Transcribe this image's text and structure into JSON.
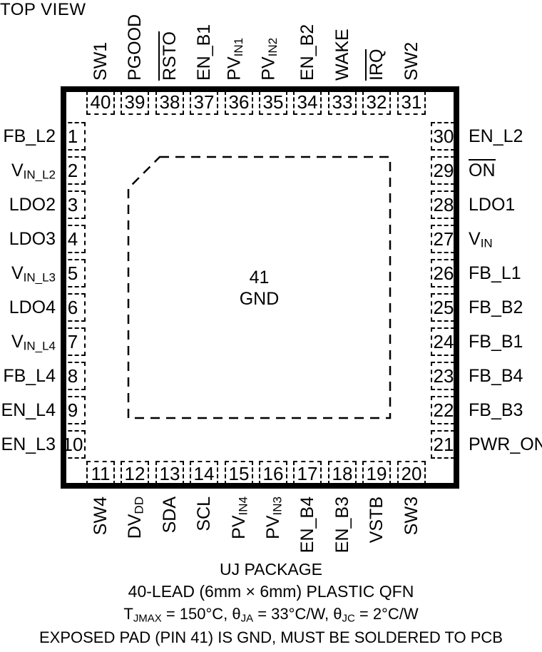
{
  "title": "TOP VIEW",
  "colors": {
    "ink": "#000000",
    "background": "#ffffff"
  },
  "package": {
    "type_note": "40-pin QFN pinout, dashed exposed pad with chamfered corner",
    "exposed_pad": {
      "number": "41",
      "name": "GND"
    }
  },
  "pins": {
    "top": [
      {
        "num": "40",
        "parts": [
          {
            "t": "SW1"
          }
        ],
        "over": false
      },
      {
        "num": "39",
        "parts": [
          {
            "t": "PGOOD"
          }
        ],
        "over": false
      },
      {
        "num": "38",
        "parts": [
          {
            "t": "RSTO"
          }
        ],
        "over": true
      },
      {
        "num": "37",
        "parts": [
          {
            "t": "EN_B1"
          }
        ],
        "over": false
      },
      {
        "num": "36",
        "parts": [
          {
            "t": "PV"
          },
          {
            "t": "IN1",
            "sub": true
          }
        ],
        "over": false
      },
      {
        "num": "35",
        "parts": [
          {
            "t": "PV"
          },
          {
            "t": "IN2",
            "sub": true
          }
        ],
        "over": false
      },
      {
        "num": "34",
        "parts": [
          {
            "t": "EN_B2"
          }
        ],
        "over": false
      },
      {
        "num": "33",
        "parts": [
          {
            "t": "WAKE"
          }
        ],
        "over": false
      },
      {
        "num": "32",
        "parts": [
          {
            "t": "IRQ"
          }
        ],
        "over": true
      },
      {
        "num": "31",
        "parts": [
          {
            "t": "SW2"
          }
        ],
        "over": false
      }
    ],
    "left": [
      {
        "num": "1",
        "parts": [
          {
            "t": "FB_L2"
          }
        ],
        "over": false
      },
      {
        "num": "2",
        "parts": [
          {
            "t": "V"
          },
          {
            "t": "IN_L2",
            "sub": true
          }
        ],
        "over": false
      },
      {
        "num": "3",
        "parts": [
          {
            "t": "LDO2"
          }
        ],
        "over": false
      },
      {
        "num": "4",
        "parts": [
          {
            "t": "LDO3"
          }
        ],
        "over": false
      },
      {
        "num": "5",
        "parts": [
          {
            "t": "V"
          },
          {
            "t": "IN_L3",
            "sub": true
          }
        ],
        "over": false
      },
      {
        "num": "6",
        "parts": [
          {
            "t": "LDO4"
          }
        ],
        "over": false
      },
      {
        "num": "7",
        "parts": [
          {
            "t": "V"
          },
          {
            "t": "IN_L4",
            "sub": true
          }
        ],
        "over": false
      },
      {
        "num": "8",
        "parts": [
          {
            "t": "FB_L4"
          }
        ],
        "over": false
      },
      {
        "num": "9",
        "parts": [
          {
            "t": "EN_L4"
          }
        ],
        "over": false
      },
      {
        "num": "10",
        "parts": [
          {
            "t": "EN_L3"
          }
        ],
        "over": false
      }
    ],
    "right": [
      {
        "num": "30",
        "parts": [
          {
            "t": "EN_L2"
          }
        ],
        "over": false
      },
      {
        "num": "29",
        "parts": [
          {
            "t": "ON"
          }
        ],
        "over": true
      },
      {
        "num": "28",
        "parts": [
          {
            "t": "LDO1"
          }
        ],
        "over": false
      },
      {
        "num": "27",
        "parts": [
          {
            "t": "V"
          },
          {
            "t": "IN",
            "sub": true
          }
        ],
        "over": false
      },
      {
        "num": "26",
        "parts": [
          {
            "t": "FB_L1"
          }
        ],
        "over": false
      },
      {
        "num": "25",
        "parts": [
          {
            "t": "FB_B2"
          }
        ],
        "over": false
      },
      {
        "num": "24",
        "parts": [
          {
            "t": "FB_B1"
          }
        ],
        "over": false
      },
      {
        "num": "23",
        "parts": [
          {
            "t": "FB_B4"
          }
        ],
        "over": false
      },
      {
        "num": "22",
        "parts": [
          {
            "t": "FB_B3"
          }
        ],
        "over": false
      },
      {
        "num": "21",
        "parts": [
          {
            "t": "PWR_ON"
          }
        ],
        "over": false
      }
    ],
    "bottom": [
      {
        "num": "11",
        "parts": [
          {
            "t": "SW4"
          }
        ],
        "over": false
      },
      {
        "num": "12",
        "parts": [
          {
            "t": "DV"
          },
          {
            "t": "DD",
            "sub": true
          }
        ],
        "over": false
      },
      {
        "num": "13",
        "parts": [
          {
            "t": "SDA"
          }
        ],
        "over": false
      },
      {
        "num": "14",
        "parts": [
          {
            "t": "SCL"
          }
        ],
        "over": false
      },
      {
        "num": "15",
        "parts": [
          {
            "t": "PV"
          },
          {
            "t": "IN4",
            "sub": true
          }
        ],
        "over": false
      },
      {
        "num": "16",
        "parts": [
          {
            "t": "PV"
          },
          {
            "t": "IN3",
            "sub": true
          }
        ],
        "over": false
      },
      {
        "num": "17",
        "parts": [
          {
            "t": "EN_B4"
          }
        ],
        "over": false
      },
      {
        "num": "18",
        "parts": [
          {
            "t": "EN_B3"
          }
        ],
        "over": false
      },
      {
        "num": "19",
        "parts": [
          {
            "t": "VSTB"
          }
        ],
        "over": false
      },
      {
        "num": "20",
        "parts": [
          {
            "t": "SW3"
          }
        ],
        "over": false
      }
    ]
  },
  "footer": {
    "line1": "UJ PACKAGE",
    "line2": "40-LEAD (6mm × 6mm) PLASTIC QFN",
    "line3_segments": [
      {
        "t": "T"
      },
      {
        "t": "JMAX",
        "sub": true
      },
      {
        "t": " = 150°C, θ"
      },
      {
        "t": "JA",
        "sub": true
      },
      {
        "t": " = 33°C/W, θ"
      },
      {
        "t": "JC",
        "sub": true
      },
      {
        "t": " = 2°C/W"
      }
    ],
    "line4": "EXPOSED PAD (PIN 41) IS GND, MUST BE SOLDERED TO PCB"
  }
}
